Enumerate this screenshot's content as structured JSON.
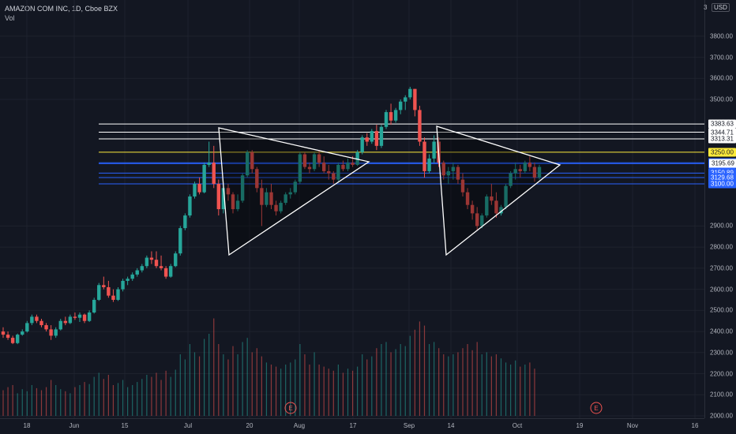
{
  "legend": {
    "symbol": "AMAZON COM INC, 1D, Cboe BZX",
    "volume_label": "Vol"
  },
  "currency": "USD",
  "axis_partial_label": "3",
  "price_ticks": [
    "3800.00",
    "3700.00",
    "3600.00",
    "3500.00",
    "2900.00",
    "2800.00",
    "2700.00",
    "2600.00",
    "2500.00",
    "2400.00",
    "2300.00",
    "2200.00",
    "2100.00",
    "2000.00"
  ],
  "level_tags": [
    {
      "label": "3383.63",
      "style": "white",
      "color": "#ffffff"
    },
    {
      "label": "3344.71",
      "style": "white",
      "color": "#ffffff"
    },
    {
      "label": "3313.31",
      "style": "white",
      "color": "#ffffff"
    },
    {
      "label": "3250.00",
      "style": "yellow",
      "color": "#ffeb3b"
    },
    {
      "label": "3200.00",
      "style": "blue",
      "color": "#2962ff"
    },
    {
      "label": "3195.69",
      "style": "white",
      "color": "#2962ff"
    },
    {
      "label": "3150.89",
      "style": "blue",
      "color": "#2962ff"
    },
    {
      "label": "3129.68",
      "style": "blue",
      "color": "#2962ff"
    },
    {
      "label": "3100.00",
      "style": "blue",
      "color": "#2962ff"
    }
  ],
  "time_labels": [
    "18",
    "Jun",
    "15",
    "Jul",
    "20",
    "Aug",
    "17",
    "Sep",
    "14",
    "Oct",
    "19",
    "Nov",
    "16"
  ],
  "event_markers": [
    "E",
    "E"
  ],
  "colors": {
    "up": "#26a69a",
    "down": "#ef5350",
    "background": "#131722",
    "pattern_outline": "#ffffff"
  },
  "chart_data": {
    "type": "candlestick",
    "symbol": "AMAZON COM INC",
    "interval": "1D",
    "exchange": "Cboe BZX",
    "ylim": [
      2000,
      3900
    ],
    "horizontal_levels": [
      3383.63,
      3344.71,
      3313.31,
      3250.0,
      3200.0,
      3195.69,
      3150.89,
      3129.68,
      3100.0
    ],
    "ohlc": [
      [
        2400,
        2420,
        2370,
        2385
      ],
      [
        2385,
        2400,
        2360,
        2370
      ],
      [
        2370,
        2380,
        2340,
        2345
      ],
      [
        2345,
        2390,
        2340,
        2385
      ],
      [
        2385,
        2410,
        2380,
        2400
      ],
      [
        2400,
        2450,
        2395,
        2440
      ],
      [
        2440,
        2480,
        2430,
        2470
      ],
      [
        2470,
        2480,
        2440,
        2450
      ],
      [
        2450,
        2460,
        2420,
        2430
      ],
      [
        2430,
        2440,
        2400,
        2410
      ],
      [
        2410,
        2430,
        2360,
        2380
      ],
      [
        2380,
        2420,
        2370,
        2410
      ],
      [
        2410,
        2460,
        2405,
        2450
      ],
      [
        2450,
        2470,
        2430,
        2440
      ],
      [
        2440,
        2480,
        2435,
        2470
      ],
      [
        2470,
        2490,
        2455,
        2465
      ],
      [
        2465,
        2490,
        2445,
        2480
      ],
      [
        2480,
        2485,
        2440,
        2450
      ],
      [
        2450,
        2500,
        2445,
        2490
      ],
      [
        2490,
        2560,
        2485,
        2550
      ],
      [
        2550,
        2630,
        2545,
        2620
      ],
      [
        2620,
        2660,
        2600,
        2610
      ],
      [
        2610,
        2640,
        2560,
        2570
      ],
      [
        2570,
        2600,
        2540,
        2550
      ],
      [
        2550,
        2610,
        2545,
        2600
      ],
      [
        2600,
        2650,
        2590,
        2640
      ],
      [
        2640,
        2660,
        2620,
        2650
      ],
      [
        2650,
        2680,
        2640,
        2670
      ],
      [
        2670,
        2700,
        2660,
        2690
      ],
      [
        2690,
        2720,
        2680,
        2710
      ],
      [
        2710,
        2760,
        2700,
        2750
      ],
      [
        2750,
        2780,
        2720,
        2740
      ],
      [
        2740,
        2780,
        2700,
        2710
      ],
      [
        2710,
        2760,
        2690,
        2700
      ],
      [
        2700,
        2710,
        2650,
        2660
      ],
      [
        2660,
        2720,
        2655,
        2710
      ],
      [
        2710,
        2780,
        2705,
        2770
      ],
      [
        2770,
        2900,
        2760,
        2890
      ],
      [
        2890,
        2960,
        2880,
        2950
      ],
      [
        2950,
        3050,
        2940,
        3040
      ],
      [
        3040,
        3110,
        3030,
        3100
      ],
      [
        3100,
        3130,
        3050,
        3060
      ],
      [
        3060,
        3200,
        3055,
        3190
      ],
      [
        3190,
        3300,
        3180,
        3200
      ],
      [
        3200,
        3280,
        3080,
        3100
      ],
      [
        3100,
        3120,
        2950,
        2980
      ],
      [
        2980,
        3100,
        2960,
        3080
      ],
      [
        3080,
        3100,
        3020,
        3050
      ],
      [
        3050,
        3060,
        2960,
        2980
      ],
      [
        2980,
        3050,
        2970,
        3020
      ],
      [
        3020,
        3150,
        3010,
        3140
      ],
      [
        3140,
        3260,
        3130,
        3250
      ],
      [
        3250,
        3260,
        3150,
        3170
      ],
      [
        3170,
        3180,
        3060,
        3080
      ],
      [
        3080,
        3120,
        2900,
        3000
      ],
      [
        3000,
        3080,
        2990,
        3060
      ],
      [
        3060,
        3100,
        2980,
        3000
      ],
      [
        3000,
        3020,
        2950,
        2970
      ],
      [
        2970,
        3020,
        2960,
        3010
      ],
      [
        3010,
        3060,
        3000,
        3050
      ],
      [
        3050,
        3080,
        3030,
        3060
      ],
      [
        3060,
        3120,
        3050,
        3110
      ],
      [
        3110,
        3250,
        3100,
        3240
      ],
      [
        3240,
        3250,
        3170,
        3180
      ],
      [
        3180,
        3200,
        3150,
        3170
      ],
      [
        3170,
        3250,
        3160,
        3240
      ],
      [
        3240,
        3260,
        3180,
        3200
      ],
      [
        3200,
        3230,
        3150,
        3160
      ],
      [
        3160,
        3190,
        3120,
        3150
      ],
      [
        3150,
        3160,
        3100,
        3120
      ],
      [
        3120,
        3200,
        3110,
        3190
      ],
      [
        3190,
        3210,
        3160,
        3170
      ],
      [
        3170,
        3220,
        3160,
        3200
      ],
      [
        3200,
        3230,
        3180,
        3190
      ],
      [
        3190,
        3260,
        3185,
        3250
      ],
      [
        3250,
        3330,
        3240,
        3320
      ],
      [
        3320,
        3340,
        3280,
        3300
      ],
      [
        3300,
        3360,
        3290,
        3350
      ],
      [
        3350,
        3380,
        3260,
        3280
      ],
      [
        3280,
        3380,
        3270,
        3370
      ],
      [
        3370,
        3450,
        3360,
        3440
      ],
      [
        3440,
        3480,
        3380,
        3400
      ],
      [
        3400,
        3460,
        3390,
        3450
      ],
      [
        3450,
        3500,
        3430,
        3490
      ],
      [
        3490,
        3520,
        3450,
        3510
      ],
      [
        3510,
        3560,
        3500,
        3550
      ],
      [
        3550,
        3550,
        3420,
        3450
      ],
      [
        3450,
        3470,
        3280,
        3300
      ],
      [
        3300,
        3320,
        3130,
        3160
      ],
      [
        3160,
        3240,
        3150,
        3220
      ],
      [
        3220,
        3330,
        3200,
        3300
      ],
      [
        3300,
        3320,
        3180,
        3200
      ],
      [
        3200,
        3210,
        3120,
        3140
      ],
      [
        3140,
        3180,
        3100,
        3160
      ],
      [
        3160,
        3200,
        3120,
        3180
      ],
      [
        3180,
        3190,
        3100,
        3120
      ],
      [
        3120,
        3150,
        3040,
        3060
      ],
      [
        3060,
        3080,
        2980,
        3000
      ],
      [
        3000,
        3020,
        2930,
        2960
      ],
      [
        2960,
        2990,
        2880,
        2900
      ],
      [
        2900,
        2960,
        2890,
        2950
      ],
      [
        2950,
        3050,
        2940,
        3040
      ],
      [
        3040,
        3100,
        3000,
        3020
      ],
      [
        3020,
        3060,
        2940,
        2960
      ],
      [
        2960,
        3000,
        2950,
        2990
      ],
      [
        2990,
        3100,
        2980,
        3090
      ],
      [
        3090,
        3160,
        3080,
        3150
      ],
      [
        3150,
        3200,
        3120,
        3170
      ],
      [
        3170,
        3190,
        3130,
        3160
      ],
      [
        3160,
        3210,
        3150,
        3200
      ],
      [
        3200,
        3230,
        3160,
        3180
      ],
      [
        3180,
        3200,
        3110,
        3130
      ],
      [
        3130,
        3190,
        3120,
        3180
      ]
    ],
    "volume_relative": [
      0.25,
      0.28,
      0.3,
      0.22,
      0.26,
      0.24,
      0.3,
      0.27,
      0.25,
      0.28,
      0.35,
      0.3,
      0.26,
      0.24,
      0.22,
      0.28,
      0.3,
      0.33,
      0.31,
      0.38,
      0.42,
      0.36,
      0.4,
      0.3,
      0.32,
      0.35,
      0.28,
      0.3,
      0.33,
      0.36,
      0.4,
      0.38,
      0.42,
      0.35,
      0.44,
      0.38,
      0.45,
      0.6,
      0.55,
      0.7,
      0.62,
      0.58,
      0.75,
      0.8,
      0.95,
      0.7,
      0.6,
      0.55,
      0.68,
      0.6,
      0.72,
      0.76,
      0.62,
      0.66,
      0.58,
      0.52,
      0.5,
      0.48,
      0.46,
      0.5,
      0.52,
      0.55,
      0.7,
      0.6,
      0.5,
      0.62,
      0.5,
      0.48,
      0.46,
      0.44,
      0.5,
      0.42,
      0.46,
      0.44,
      0.48,
      0.6,
      0.55,
      0.58,
      0.66,
      0.7,
      0.72,
      0.62,
      0.65,
      0.7,
      0.68,
      0.78,
      0.84,
      0.92,
      0.88,
      0.7,
      0.72,
      0.66,
      0.6,
      0.58,
      0.6,
      0.62,
      0.66,
      0.7,
      0.64,
      0.72,
      0.6,
      0.62,
      0.58,
      0.6,
      0.56,
      0.52,
      0.5,
      0.54,
      0.48,
      0.5,
      0.52,
      0.46
    ]
  }
}
